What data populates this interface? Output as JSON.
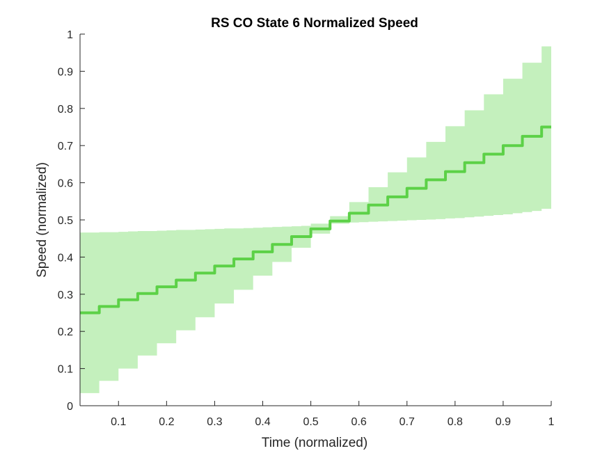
{
  "chart_data": {
    "type": "area",
    "title": "RS  CO State 6 Normalized Speed",
    "xlabel": "Time (normalized)",
    "ylabel": "Speed (normalized)",
    "xlim": [
      0.02,
      1.0
    ],
    "ylim": [
      0,
      1
    ],
    "xticks": [
      0.1,
      0.2,
      0.3,
      0.4,
      0.5,
      0.6,
      0.7,
      0.8,
      0.9,
      1
    ],
    "xtick_labels": [
      "0.1",
      "0.2",
      "0.3",
      "0.4",
      "0.5",
      "0.6",
      "0.7",
      "0.8",
      "0.9",
      "1"
    ],
    "yticks": [
      0,
      0.1,
      0.2,
      0.3,
      0.4,
      0.5,
      0.6,
      0.7,
      0.8,
      0.9,
      1
    ],
    "ytick_labels": [
      "0",
      "0.1",
      "0.2",
      "0.3",
      "0.4",
      "0.5",
      "0.6",
      "0.7",
      "0.8",
      "0.9",
      "1"
    ],
    "grid": false,
    "step_style": "stairs",
    "colors": {
      "line": "#5cd147",
      "band": "#c4f0bd",
      "axis": "#262626"
    },
    "series": [
      {
        "role": "mean",
        "x": [
          0.02,
          0.04,
          0.06,
          0.08,
          0.1,
          0.12,
          0.14,
          0.16,
          0.18,
          0.2,
          0.22,
          0.24,
          0.26,
          0.28,
          0.3,
          0.32,
          0.34,
          0.36,
          0.38,
          0.4,
          0.42,
          0.44,
          0.46,
          0.48,
          0.5,
          0.52,
          0.54,
          0.56,
          0.58,
          0.6,
          0.62,
          0.64,
          0.66,
          0.68,
          0.7,
          0.72,
          0.74,
          0.76,
          0.78,
          0.8,
          0.82,
          0.84,
          0.86,
          0.88,
          0.9,
          0.92,
          0.94,
          0.96,
          0.98,
          1.0
        ],
        "y": [
          0.25,
          0.25,
          0.267,
          0.267,
          0.285,
          0.285,
          0.302,
          0.302,
          0.32,
          0.32,
          0.338,
          0.338,
          0.357,
          0.357,
          0.376,
          0.376,
          0.395,
          0.395,
          0.414,
          0.414,
          0.434,
          0.434,
          0.455,
          0.455,
          0.476,
          0.476,
          0.497,
          0.497,
          0.518,
          0.518,
          0.54,
          0.54,
          0.562,
          0.562,
          0.585,
          0.585,
          0.608,
          0.608,
          0.63,
          0.63,
          0.654,
          0.654,
          0.677,
          0.677,
          0.7,
          0.7,
          0.725,
          0.725,
          0.75,
          0.75
        ]
      },
      {
        "role": "upper",
        "x": [
          0.02,
          0.04,
          0.06,
          0.08,
          0.1,
          0.12,
          0.14,
          0.16,
          0.18,
          0.2,
          0.22,
          0.24,
          0.26,
          0.28,
          0.3,
          0.32,
          0.34,
          0.36,
          0.38,
          0.4,
          0.42,
          0.44,
          0.46,
          0.48,
          0.5,
          0.52,
          0.54,
          0.56,
          0.58,
          0.6,
          0.62,
          0.64,
          0.66,
          0.68,
          0.7,
          0.72,
          0.74,
          0.76,
          0.78,
          0.8,
          0.82,
          0.84,
          0.86,
          0.88,
          0.9,
          0.92,
          0.94,
          0.96,
          0.98,
          1.0
        ],
        "y": [
          0.466,
          0.466,
          0.467,
          0.467,
          0.468,
          0.469,
          0.47,
          0.47,
          0.471,
          0.472,
          0.473,
          0.473,
          0.474,
          0.475,
          0.476,
          0.477,
          0.477,
          0.478,
          0.479,
          0.48,
          0.481,
          0.482,
          0.483,
          0.484,
          0.49,
          0.49,
          0.51,
          0.51,
          0.548,
          0.548,
          0.588,
          0.588,
          0.628,
          0.628,
          0.668,
          0.668,
          0.71,
          0.71,
          0.752,
          0.752,
          0.795,
          0.795,
          0.838,
          0.838,
          0.88,
          0.88,
          0.923,
          0.923,
          0.967,
          0.967
        ]
      },
      {
        "role": "lower",
        "x": [
          0.02,
          0.04,
          0.06,
          0.08,
          0.1,
          0.12,
          0.14,
          0.16,
          0.18,
          0.2,
          0.22,
          0.24,
          0.26,
          0.28,
          0.3,
          0.32,
          0.34,
          0.36,
          0.38,
          0.4,
          0.42,
          0.44,
          0.46,
          0.48,
          0.5,
          0.52,
          0.54,
          0.56,
          0.58,
          0.6,
          0.62,
          0.64,
          0.66,
          0.68,
          0.7,
          0.72,
          0.74,
          0.76,
          0.78,
          0.8,
          0.82,
          0.84,
          0.86,
          0.88,
          0.9,
          0.92,
          0.94,
          0.96,
          0.98,
          1.0
        ],
        "y": [
          0.034,
          0.034,
          0.067,
          0.067,
          0.1,
          0.1,
          0.135,
          0.135,
          0.168,
          0.168,
          0.203,
          0.203,
          0.238,
          0.238,
          0.275,
          0.275,
          0.312,
          0.312,
          0.35,
          0.35,
          0.387,
          0.387,
          0.425,
          0.425,
          0.463,
          0.463,
          0.49,
          0.49,
          0.493,
          0.494,
          0.495,
          0.496,
          0.497,
          0.498,
          0.499,
          0.5,
          0.501,
          0.502,
          0.504,
          0.505,
          0.507,
          0.509,
          0.511,
          0.513,
          0.515,
          0.518,
          0.521,
          0.524,
          0.53,
          0.532
        ]
      }
    ]
  }
}
